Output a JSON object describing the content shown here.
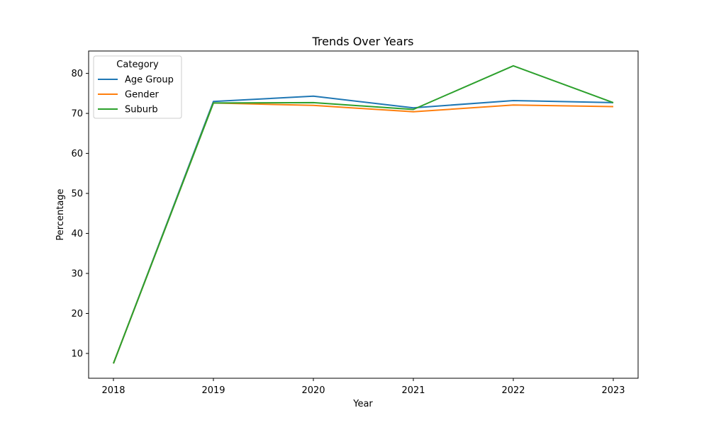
{
  "chart_data": {
    "type": "line",
    "title": "Trends Over Years",
    "xlabel": "Year",
    "ylabel": "Percentage",
    "x": [
      "2018",
      "2019",
      "2020",
      "2021",
      "2022",
      "2023"
    ],
    "yticks": [
      10,
      20,
      30,
      40,
      50,
      60,
      70,
      80
    ],
    "ylim": [
      3.8,
      85.6
    ],
    "grid": false,
    "legend": {
      "title": "Category",
      "placement": "top-left"
    },
    "series": [
      {
        "name": "Age Group",
        "color": "#1f77b4",
        "values": [
          7.5,
          73.0,
          74.3,
          71.4,
          73.2,
          72.7
        ]
      },
      {
        "name": "Gender",
        "color": "#ff7f0e",
        "values": [
          7.5,
          72.6,
          72.0,
          70.4,
          72.1,
          71.7
        ]
      },
      {
        "name": "Suburb",
        "color": "#2ca02c",
        "values": [
          7.5,
          72.6,
          72.7,
          71.0,
          81.9,
          72.7
        ]
      }
    ]
  }
}
